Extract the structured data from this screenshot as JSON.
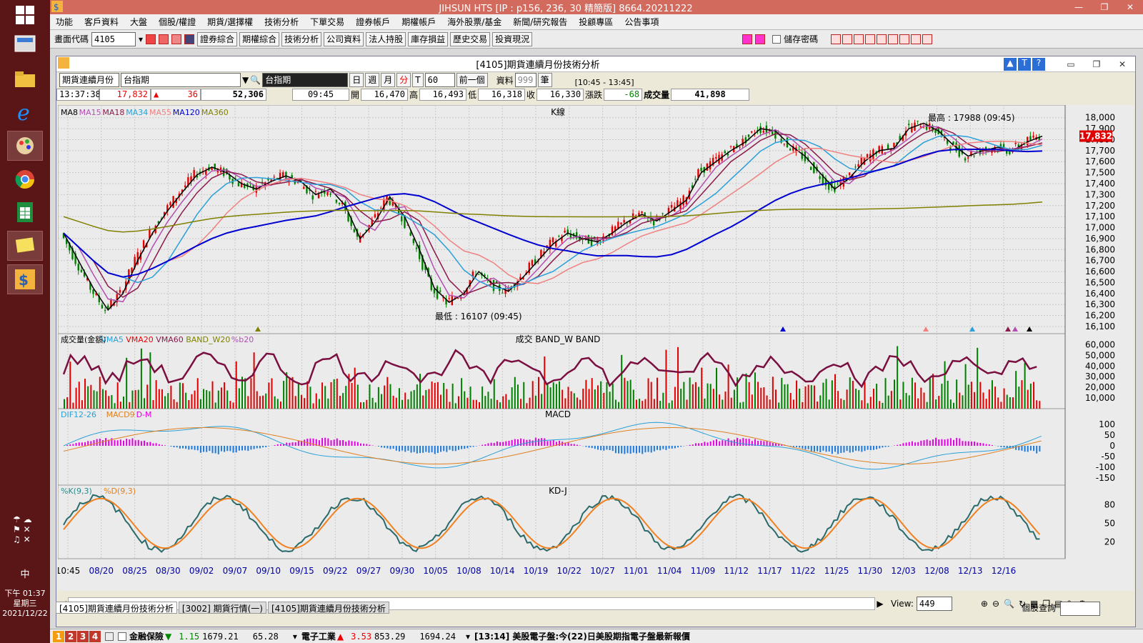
{
  "taskbar": {
    "clock_time": "下午 01:37",
    "clock_day": "星期三",
    "clock_date": "2021/12/22",
    "ime": "中",
    "icons": [
      "windows-icon",
      "monitor-icon",
      "folder-icon",
      "ie-icon",
      "paint-icon",
      "chrome-icon",
      "sheet-icon",
      "note-icon",
      "jihsun-icon"
    ]
  },
  "titlebar": {
    "title": "JIHSUN HTS    [IP : p156, 236, 30 精簡版] 8664.20211222"
  },
  "menu": [
    "功能",
    "客戶資料",
    "大盤",
    "個股/權證",
    "期貨/選擇權",
    "技術分析",
    "下單交易",
    "證券帳戶",
    "期權帳戶",
    "海外股票/基金",
    "新聞/研究報告",
    "投顧專區",
    "公告事項"
  ],
  "toolbar": {
    "code_label": "畫面代碼",
    "code_value": "4105",
    "buttons": [
      "證券綜合",
      "期權綜合",
      "技術分析",
      "公司資料",
      "法人持股",
      "庫存損益",
      "歷史交易",
      "投資現況"
    ],
    "save_password": "儲存密碼"
  },
  "inner": {
    "title": "[4105]期貨連續月份技術分析",
    "product_select": "期貨連續月份",
    "symbol_value": "台指期",
    "symbol_name": "台指期",
    "period_buttons": [
      "日",
      "週",
      "月",
      "分",
      "T"
    ],
    "interval": "60",
    "prev_button": "前一個",
    "data_label": "資料",
    "data_count": "999",
    "bar_unit": "筆",
    "time_range": "[10:45 - 13:45]"
  },
  "quote": {
    "time": "13:37:38",
    "price": "17,832",
    "change": "36",
    "volume": "52,306",
    "bar_time": "09:45",
    "open_label": "開",
    "open": "16,470",
    "high_label": "高",
    "high": "16,493",
    "low_label": "低",
    "low": "16,318",
    "close_label": "收",
    "close": "16,330",
    "chg_label": "漲跌",
    "chg": "-68",
    "vol_label": "成交量",
    "vol": "41,898"
  },
  "chart_data": [
    {
      "type": "line",
      "title": "K線",
      "legend": [
        "MA8",
        "MA15",
        "MA18",
        "MA34",
        "MA55",
        "MA120",
        "MA360"
      ],
      "legend_colors": [
        "#000000",
        "#b34fb3",
        "#8b1a4a",
        "#2aa0d8",
        "#f08080",
        "#0000d0",
        "#808000"
      ],
      "y_ticks": [
        18000,
        17900,
        17800,
        17700,
        17600,
        17500,
        17400,
        17300,
        17200,
        17100,
        17000,
        16900,
        16800,
        16700,
        16600,
        16500,
        16400,
        16300,
        16200,
        16100
      ],
      "ylim": [
        16100,
        18050
      ],
      "current_price_label": "17,832",
      "high_annotation": "最高 : 17988 (09:45)",
      "low_annotation": "最低 : 16107 (09:45)",
      "x_ticks": [
        "10:45",
        "08/20",
        "08/25",
        "08/30",
        "09/02",
        "09/07",
        "09/10",
        "09/15",
        "09/22",
        "09/27",
        "09/30",
        "10/05",
        "10/08",
        "10/14",
        "10/19",
        "10/22",
        "10/27",
        "11/01",
        "11/04",
        "11/09",
        "11/12",
        "11/17",
        "11/22",
        "11/25",
        "11/30",
        "12/03",
        "12/08",
        "12/13",
        "12/16"
      ],
      "close_path": [
        16950,
        16700,
        16450,
        16250,
        16400,
        16700,
        16950,
        17150,
        17320,
        17480,
        17550,
        17500,
        17400,
        17350,
        17420,
        17470,
        17420,
        17300,
        17350,
        17200,
        16900,
        17050,
        17280,
        17100,
        16800,
        16450,
        16320,
        16400,
        16600,
        16480,
        16420,
        16550,
        16700,
        16850,
        16950,
        16900,
        16870,
        16950,
        17050,
        17120,
        17060,
        17150,
        17250,
        17500,
        17600,
        17700,
        17780,
        17900,
        17880,
        17750,
        17650,
        17500,
        17350,
        17450,
        17600,
        17700,
        17720,
        17900,
        17950,
        17880,
        17750,
        17650,
        17700,
        17730,
        17700,
        17780,
        17832
      ]
    },
    {
      "type": "bar",
      "title": "成交  BAND_W  BAND",
      "legend": [
        "成交量(金額)",
        "VMA5",
        "VMA20",
        "VMA60",
        "BAND_W20",
        "%b20"
      ],
      "y_ticks": [
        60000,
        50000,
        40000,
        30000,
        20000,
        10000
      ]
    },
    {
      "type": "bar",
      "title": "MACD",
      "legend": [
        "DIF12-26",
        "MACD9",
        "D-M"
      ],
      "y_ticks": [
        100,
        50,
        0,
        -50,
        -100,
        -150
      ]
    },
    {
      "type": "line",
      "title": "KD-J",
      "legend": [
        "%K(9,3)",
        "%D(9,3)"
      ],
      "y_ticks": [
        80,
        50,
        20
      ]
    }
  ],
  "scroll": {
    "view_label": "View:",
    "view_value": "449"
  },
  "tabs": [
    "[4105]期貨連續月份技術分析",
    "[3002] 期貨行情(一)",
    "[4105]期貨連續月份技術分析"
  ],
  "right_query": "個股查詢",
  "bottom": {
    "nums": [
      "1",
      "2",
      "3",
      "4"
    ],
    "item1_name": "金融保險",
    "item1_chg": "1.15",
    "item1_val": "1679.21",
    "item1_vol": "65.28",
    "item2_name": "電子工業",
    "item2_chg": "3.53",
    "item2_val": "853.29",
    "item2_vol": "1694.24",
    "news": "[13:14] 美股電子盤:今(22)日美股期指電子盤最新報價"
  }
}
